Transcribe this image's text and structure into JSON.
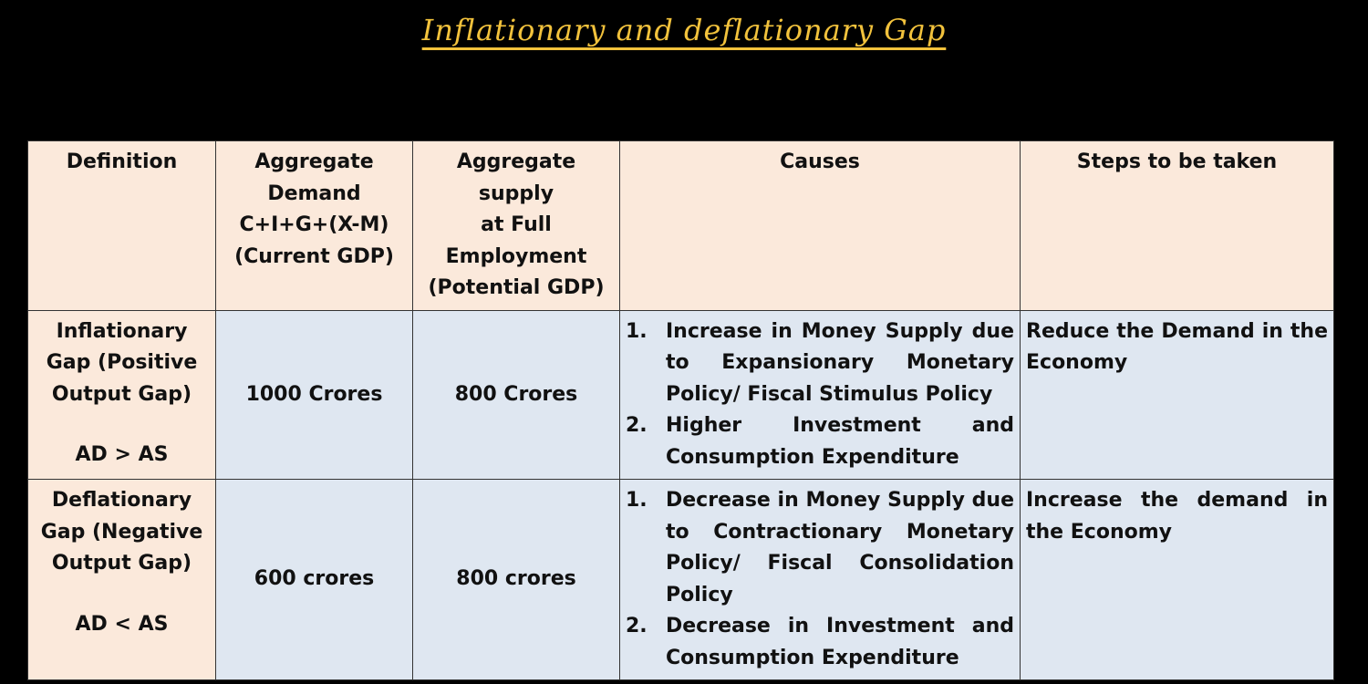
{
  "title": "Inflationary and deflationary Gap",
  "table": {
    "headers": [
      [
        "Definition"
      ],
      [
        "Aggregate",
        "Demand",
        "C+I+G+(X-M)",
        "(Current GDP)"
      ],
      [
        "Aggregate supply",
        "at Full",
        "Employment",
        "(Potential GDP)"
      ],
      [
        "Causes"
      ],
      [
        "Steps to be taken"
      ]
    ],
    "rows": [
      {
        "definition": [
          "Inflationary Gap (Positive Output Gap)",
          "AD > AS"
        ],
        "aggregate_demand": "1000 Crores",
        "aggregate_supply": "800 Crores",
        "causes": [
          {
            "number": "1.",
            "text": "Increase in Money Supply due to Expansionary Monetary Policy/ Fiscal Stimulus Policy"
          },
          {
            "number": "2.",
            "text": "Higher Investment and Consumption Expenditure"
          }
        ],
        "steps": "Reduce the Demand in the Economy"
      },
      {
        "definition": [
          "Deflationary Gap (Negative Output Gap)",
          "AD < AS"
        ],
        "aggregate_demand": "600 crores",
        "aggregate_supply": "800 crores",
        "causes": [
          {
            "number": "1.",
            "text": "Decrease in Money Supply due to Contractionary Monetary Policy/ Fiscal Consolidation Policy"
          },
          {
            "number": "2.",
            "text": "Decrease in Investment and Consumption Expenditure"
          }
        ],
        "steps": "Increase the demand in the Economy"
      }
    ]
  }
}
